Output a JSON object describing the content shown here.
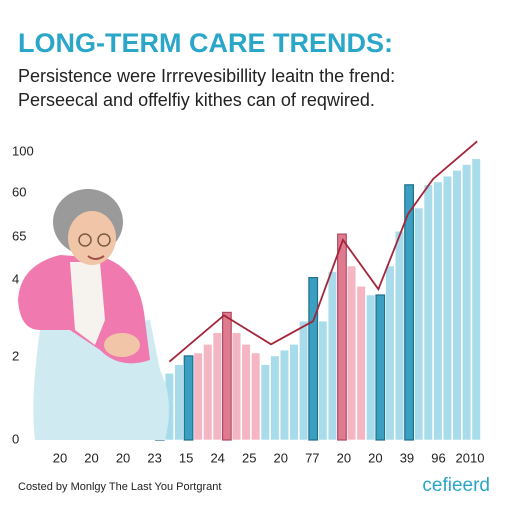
{
  "chart_data": {
    "type": "bar_line",
    "title": "LONG-TERM CARE TRENDS:",
    "subtitle": [
      "Persistence were Irrrevesibillity leaitn the frend:",
      "Perseecal and offelfiy kithes can of reqwired."
    ],
    "y_axis_labels": [
      "100",
      "60",
      "65",
      "4",
      "2",
      "0"
    ],
    "x_axis_labels": [
      "20",
      "20",
      "20",
      "23",
      "15",
      "24",
      "25",
      "20",
      "77",
      "20",
      "20",
      "39",
      "96",
      "2010"
    ],
    "ylim": [
      0,
      100
    ],
    "xlim": [
      0,
      34
    ],
    "values": [
      18,
      23,
      26,
      29,
      30,
      33,
      37,
      44,
      37,
      33,
      30,
      26,
      29,
      31,
      33,
      41,
      56,
      41,
      58,
      71,
      60,
      53,
      50,
      50,
      60,
      72,
      88,
      80,
      88,
      89,
      91,
      93,
      95,
      97
    ],
    "bar_colors": [
      "#3a9fc0",
      "#a8dcea",
      "#a8dcea",
      "#3a9fc0",
      "#f4b6c2",
      "#f4b6c2",
      "#f4b6c2",
      "#e07a8f",
      "#f4b6c2",
      "#f4b6c2",
      "#f4b6c2",
      "#a8dcea",
      "#a8dcea",
      "#a8dcea",
      "#a8dcea",
      "#a8dcea",
      "#3a9fc0",
      "#a8dcea",
      "#a8dcea",
      "#e07a8f",
      "#f4b6c2",
      "#f4b6c2",
      "#a8dcea",
      "#3a9fc0",
      "#a8dcea",
      "#a8dcea",
      "#3a9fc0",
      "#a8dcea",
      "#a8dcea",
      "#a8dcea",
      "#a8dcea",
      "#a8dcea",
      "#a8dcea",
      "#a8dcea"
    ],
    "line": {
      "color": "#a3263a",
      "x": [
        1.5,
        7.2,
        12.1,
        16.5,
        19.6,
        23.3,
        26.4,
        29,
        33.6
      ],
      "values": [
        27,
        43,
        33,
        41,
        69,
        52,
        78,
        90,
        103
      ]
    },
    "footer": "Costed by Monlgy The Last You Portgrant",
    "logo": "cefieerd"
  }
}
